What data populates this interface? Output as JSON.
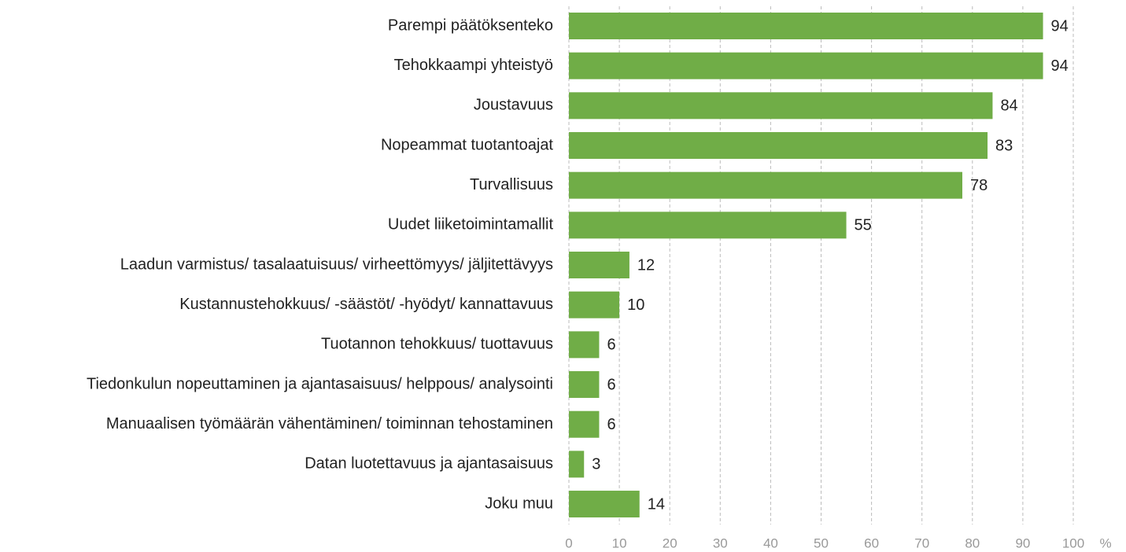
{
  "chart_data": {
    "type": "barh",
    "categories": [
      "Parempi päätöksenteko",
      "Tehokkaampi yhteistyö",
      "Joustavuus",
      "Nopeammat tuotantoajat",
      "Turvallisuus",
      "Uudet liiketoimintamallit",
      "Laadun varmistus/ tasalaatuisuus/ virheettömyys/ jäljitettävyys",
      "Kustannustehokkuus/ -säästöt/ -hyödyt/ kannattavuus",
      "Tuotannon tehokkuus/ tuottavuus",
      "Tiedonkulun nopeuttaminen ja ajantasaisuus/ helppous/ analysointi",
      "Manuaalisen työmäärän vähentäminen/ toiminnan tehostaminen",
      "Datan luotettavuus ja ajantasaisuus",
      "Joku muu"
    ],
    "values": [
      94,
      94,
      84,
      83,
      78,
      55,
      12,
      10,
      6,
      6,
      6,
      3,
      14
    ],
    "color": "#70ad47",
    "xlim": [
      0,
      100
    ],
    "xticks": [
      0,
      10,
      20,
      30,
      40,
      50,
      60,
      70,
      80,
      90,
      100
    ],
    "x_label": "%",
    "grid": true
  }
}
